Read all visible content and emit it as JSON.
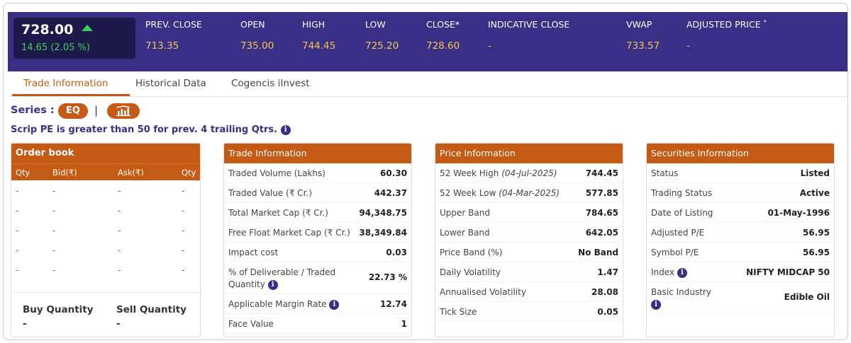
{
  "quote": {
    "last_price": "728.00",
    "change": "14.65 (2.05 %)",
    "columns": [
      {
        "label": "PREV. CLOSE",
        "value": "713.35"
      },
      {
        "label": "OPEN",
        "value": "735.00"
      },
      {
        "label": "HIGH",
        "value": "744.45"
      },
      {
        "label": "LOW",
        "value": "725.20"
      },
      {
        "label": "CLOSE*",
        "value": "728.60"
      },
      {
        "label": "INDICATIVE CLOSE",
        "value": "-"
      },
      {
        "label": "VWAP",
        "value": "733.57"
      },
      {
        "label": "ADJUSTED PRICE",
        "sup": "*",
        "value": "-"
      }
    ]
  },
  "tabs": [
    "Trade Information",
    "Historical Data",
    "Cogencis iInvest"
  ],
  "series": {
    "label": "Series :",
    "value": "EQ",
    "separator": "|",
    "chart_icon": "chart-icon",
    "pe_note": "Scrip PE is greater than 50 for prev. 4 trailing Qtrs."
  },
  "order_book": {
    "title": "Order book",
    "columns": [
      "Qty",
      "Bid(₹)",
      "Ask(₹)",
      "Qty"
    ],
    "rows": [
      [
        "-",
        "-",
        "-",
        "-"
      ],
      [
        "-",
        "-",
        "-",
        "-"
      ],
      [
        "-",
        "-",
        "-",
        "-"
      ],
      [
        "-",
        "-",
        "-",
        "-"
      ],
      [
        "-",
        "-",
        "-",
        "-"
      ]
    ],
    "buy_label": "Buy Quantity",
    "buy_value": "-",
    "sell_label": "Sell Quantity",
    "sell_value": "-"
  },
  "trade_info": {
    "title": "Trade Information",
    "rows": [
      {
        "k": "Traded Volume (Lakhs)",
        "v": "60.30"
      },
      {
        "k": "Traded Value (₹ Cr.)",
        "v": "442.37"
      },
      {
        "k": "Total Market Cap (₹ Cr.)",
        "v": "94,348.75"
      },
      {
        "k": "Free Float Market Cap (₹ Cr.)",
        "v": "38,349.84"
      },
      {
        "k": "Impact cost",
        "v": "0.03"
      },
      {
        "k": "% of Deliverable / Traded Quantity",
        "v": "22.73 %"
      },
      {
        "k": "Applicable Margin Rate",
        "v": "12.74"
      },
      {
        "k": "Face Value",
        "v": "1"
      }
    ]
  },
  "price_info": {
    "title": "Price Information",
    "rows": [
      {
        "k": "52 Week High",
        "d": "(04-Jul-2025)",
        "v": "744.45"
      },
      {
        "k": "52 Week Low",
        "d": "(04-Mar-2025)",
        "v": "577.85"
      },
      {
        "k": "Upper Band",
        "v": "784.65"
      },
      {
        "k": "Lower Band",
        "v": "642.05"
      },
      {
        "k": "Price Band (%)",
        "v": "No Band"
      },
      {
        "k": "Daily Volatility",
        "v": "1.47"
      },
      {
        "k": "Annualised Volatility",
        "v": "28.08"
      },
      {
        "k": "Tick Size",
        "v": "0.05"
      }
    ]
  },
  "securities_info": {
    "title": "Securities Information",
    "rows": [
      {
        "k": "Status",
        "v": "Listed"
      },
      {
        "k": "Trading Status",
        "v": "Active"
      },
      {
        "k": "Date of Listing",
        "v": "01-May-1996"
      },
      {
        "k": "Adjusted P/E",
        "v": "56.95"
      },
      {
        "k": "Symbol P/E",
        "v": "56.95"
      },
      {
        "k": "Index",
        "v": "NIFTY MIDCAP 50"
      },
      {
        "k": "Basic Industry",
        "v": "Edible Oil"
      }
    ]
  },
  "info_icon_glyph": "i",
  "colors": {
    "band": "#3a2f86",
    "accent": "#c45a14",
    "up": "#3cd05a",
    "value_yellow": "#f6c64f"
  }
}
